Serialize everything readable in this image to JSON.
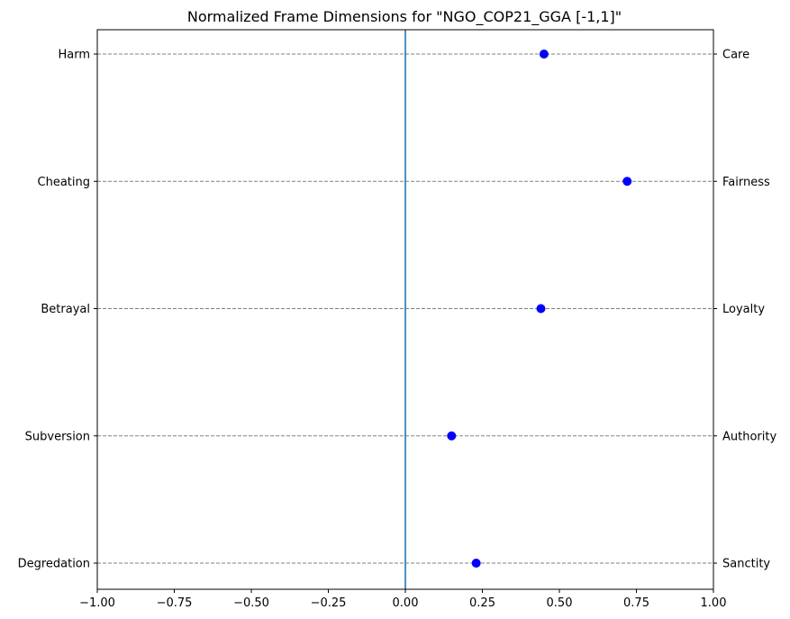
{
  "chart_data": {
    "type": "scatter",
    "title": "Normalized Frame Dimensions for \"NGO_COP21_GGA [-1,1]\"",
    "xlabel": "",
    "ylabel": "",
    "xlim": [
      -1,
      1
    ],
    "xticks": [
      "−1.00",
      "−0.75",
      "−0.50",
      "−0.25",
      "0.00",
      "0.25",
      "0.50",
      "0.75",
      "1.00"
    ],
    "xtick_values": [
      -1,
      -0.75,
      -0.5,
      -0.25,
      0,
      0.25,
      0.5,
      0.75,
      1
    ],
    "left_labels": [
      "Harm",
      "Cheating",
      "Betrayal",
      "Subversion",
      "Degredation"
    ],
    "right_labels": [
      "Care",
      "Fairness",
      "Loyalty",
      "Authority",
      "Sanctity"
    ],
    "values": [
      0.45,
      0.72,
      0.44,
      0.15,
      0.23
    ],
    "grid": "horizontal dashed",
    "reference_line_x": 0,
    "point_color": "#0000ff",
    "reference_color": "#1f77b4",
    "grid_color": "#808080"
  }
}
